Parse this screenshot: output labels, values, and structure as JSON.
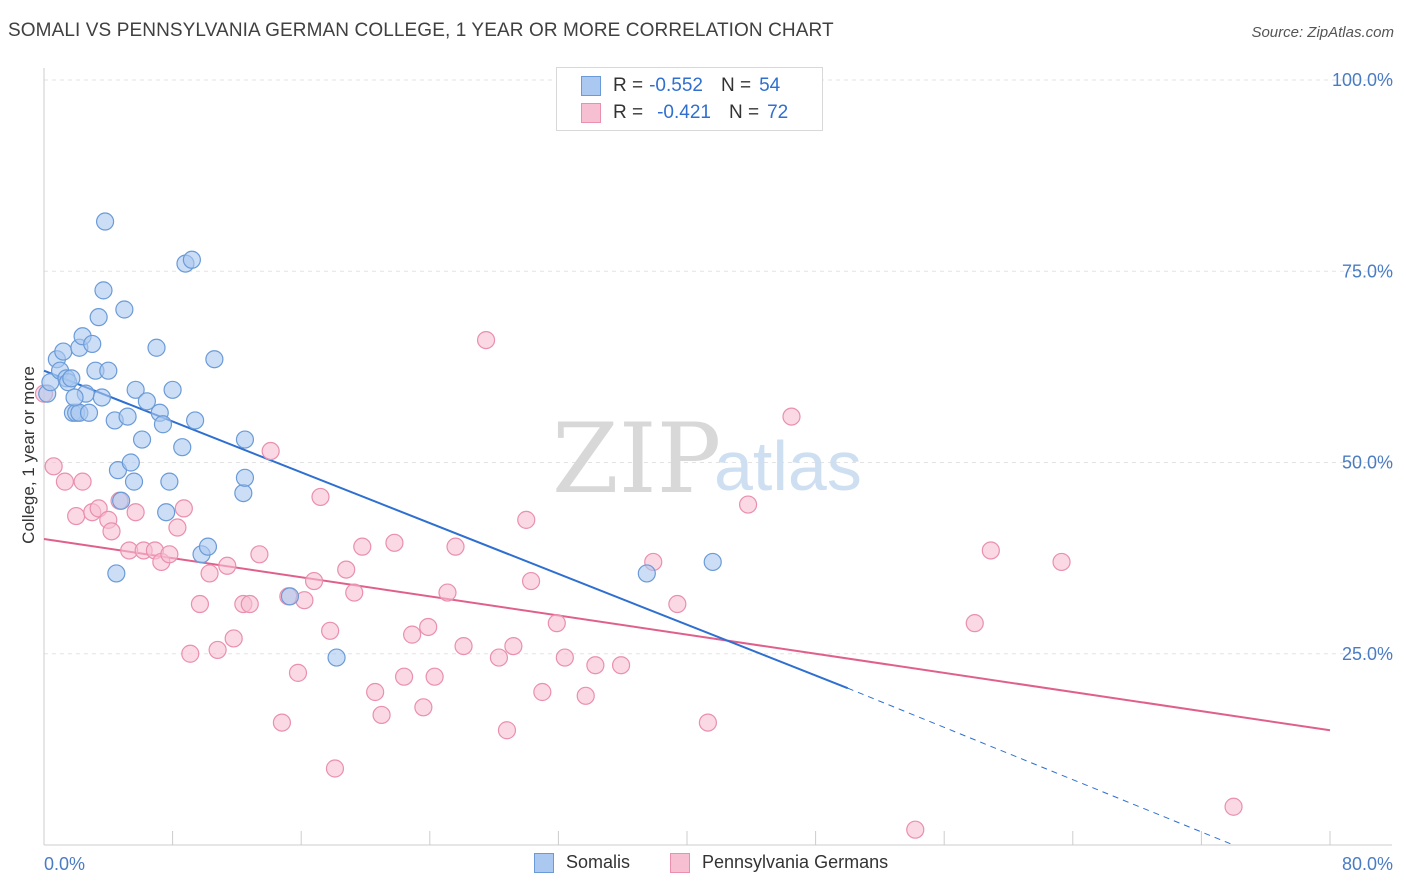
{
  "title": "SOMALI VS PENNSYLVANIA GERMAN COLLEGE, 1 YEAR OR MORE CORRELATION CHART",
  "source": "Source: ZipAtlas.com",
  "watermark": {
    "zip": "ZIP",
    "atlas": "atlas"
  },
  "legend": {
    "somali": {
      "r_label": "R =",
      "r_value": "-0.552",
      "n_label": "N =",
      "n_value": "54"
    },
    "pa": {
      "r_label": "R =",
      "r_value": "-0.421",
      "n_label": "N =",
      "n_value": "72"
    }
  },
  "bottom_legend": {
    "somali": "Somalis",
    "pa": "Pennsylvania Germans"
  },
  "colors": {
    "somali_fill": "#aac8f0",
    "somali_stroke": "#6a9bd8",
    "somali_line": "#2e6fd0",
    "pa_fill": "#f7bfd2",
    "pa_stroke": "#ea8fae",
    "pa_line": "#e0608c",
    "tick_text": "#4a7cc4",
    "grid": "#e3e3e3"
  },
  "chart_data": {
    "type": "scatter",
    "xlabel": "",
    "ylabel": "College, 1 year or more",
    "xlim": [
      0,
      80
    ],
    "ylim": [
      0,
      100
    ],
    "x_tick_labels": [
      "0.0%",
      "80.0%"
    ],
    "y_ticks": [
      25,
      50,
      75,
      100
    ],
    "y_tick_labels": [
      "25.0%",
      "50.0%",
      "75.0%",
      "100.0%"
    ],
    "grid": true,
    "series": [
      {
        "name": "Somalis",
        "points": [
          [
            0.2,
            59.0
          ],
          [
            0.4,
            60.5
          ],
          [
            0.8,
            63.5
          ],
          [
            1.0,
            62.0
          ],
          [
            1.2,
            64.5
          ],
          [
            1.4,
            61.0
          ],
          [
            1.5,
            60.5
          ],
          [
            1.7,
            61.0
          ],
          [
            1.8,
            56.5
          ],
          [
            2.0,
            56.5
          ],
          [
            2.2,
            56.5
          ],
          [
            2.2,
            65.0
          ],
          [
            2.4,
            66.5
          ],
          [
            2.6,
            59.0
          ],
          [
            2.8,
            56.5
          ],
          [
            3.0,
            65.5
          ],
          [
            3.2,
            62.0
          ],
          [
            3.4,
            69.0
          ],
          [
            3.6,
            58.5
          ],
          [
            3.7,
            72.5
          ],
          [
            3.8,
            81.5
          ],
          [
            4.0,
            62.0
          ],
          [
            4.4,
            55.5
          ],
          [
            4.6,
            49.0
          ],
          [
            4.8,
            45.0
          ],
          [
            5.0,
            70.0
          ],
          [
            5.2,
            56.0
          ],
          [
            5.4,
            50.0
          ],
          [
            5.6,
            47.5
          ],
          [
            5.7,
            59.5
          ],
          [
            6.1,
            53.0
          ],
          [
            6.4,
            58.0
          ],
          [
            7.0,
            65.0
          ],
          [
            7.2,
            56.5
          ],
          [
            7.4,
            55.0
          ],
          [
            7.6,
            43.5
          ],
          [
            7.8,
            47.5
          ],
          [
            8.0,
            59.5
          ],
          [
            8.6,
            52.0
          ],
          [
            8.8,
            76.0
          ],
          [
            9.2,
            76.5
          ],
          [
            9.4,
            55.5
          ],
          [
            9.8,
            38.0
          ],
          [
            10.2,
            39.0
          ],
          [
            10.6,
            63.5
          ],
          [
            12.4,
            46.0
          ],
          [
            12.5,
            48.0
          ],
          [
            12.5,
            53.0
          ],
          [
            15.3,
            32.5
          ],
          [
            18.2,
            24.5
          ],
          [
            37.5,
            35.5
          ],
          [
            41.6,
            37.0
          ],
          [
            4.5,
            35.5
          ],
          [
            1.9,
            58.5
          ]
        ]
      },
      {
        "name": "Pennsylvania Germans",
        "points": [
          [
            0.0,
            59.0
          ],
          [
            0.6,
            49.5
          ],
          [
            1.3,
            47.5
          ],
          [
            2.0,
            43.0
          ],
          [
            2.4,
            47.5
          ],
          [
            3.0,
            43.5
          ],
          [
            3.4,
            44.0
          ],
          [
            4.0,
            42.5
          ],
          [
            4.2,
            41.0
          ],
          [
            4.7,
            45.0
          ],
          [
            5.3,
            38.5
          ],
          [
            5.7,
            43.5
          ],
          [
            6.2,
            38.5
          ],
          [
            6.9,
            38.5
          ],
          [
            7.3,
            37.0
          ],
          [
            7.8,
            38.0
          ],
          [
            8.3,
            41.5
          ],
          [
            8.7,
            44.0
          ],
          [
            9.1,
            25.0
          ],
          [
            9.7,
            31.5
          ],
          [
            10.3,
            35.5
          ],
          [
            10.8,
            25.5
          ],
          [
            11.4,
            36.5
          ],
          [
            11.8,
            27.0
          ],
          [
            12.4,
            31.5
          ],
          [
            12.8,
            31.5
          ],
          [
            13.4,
            38.0
          ],
          [
            14.1,
            51.5
          ],
          [
            14.8,
            16.0
          ],
          [
            15.2,
            32.5
          ],
          [
            15.8,
            22.5
          ],
          [
            16.2,
            32.0
          ],
          [
            16.8,
            34.5
          ],
          [
            17.2,
            45.5
          ],
          [
            17.8,
            28.0
          ],
          [
            18.1,
            10.0
          ],
          [
            18.8,
            36.0
          ],
          [
            19.3,
            33.0
          ],
          [
            19.8,
            39.0
          ],
          [
            20.6,
            20.0
          ],
          [
            21.0,
            17.0
          ],
          [
            21.8,
            39.5
          ],
          [
            22.4,
            22.0
          ],
          [
            22.9,
            27.5
          ],
          [
            23.6,
            18.0
          ],
          [
            23.9,
            28.5
          ],
          [
            24.3,
            22.0
          ],
          [
            25.1,
            33.0
          ],
          [
            25.6,
            39.0
          ],
          [
            26.1,
            26.0
          ],
          [
            27.5,
            66.0
          ],
          [
            28.3,
            24.5
          ],
          [
            28.8,
            15.0
          ],
          [
            29.2,
            26.0
          ],
          [
            30.0,
            42.5
          ],
          [
            30.3,
            34.5
          ],
          [
            31.0,
            20.0
          ],
          [
            31.9,
            29.0
          ],
          [
            32.4,
            24.5
          ],
          [
            33.7,
            19.5
          ],
          [
            34.3,
            23.5
          ],
          [
            35.9,
            23.5
          ],
          [
            37.9,
            37.0
          ],
          [
            39.4,
            31.5
          ],
          [
            41.3,
            16.0
          ],
          [
            43.8,
            44.5
          ],
          [
            46.5,
            56.0
          ],
          [
            54.2,
            2.0
          ],
          [
            57.9,
            29.0
          ],
          [
            58.9,
            38.5
          ],
          [
            63.3,
            37.0
          ],
          [
            74.0,
            5.0
          ]
        ]
      }
    ],
    "trend_lines": [
      {
        "series": "Somalis",
        "x": [
          0,
          50
        ],
        "y": [
          62.0,
          20.5
        ],
        "dashed_extension_x": [
          50,
          74
        ],
        "dashed_extension_y": [
          20.5,
          0.0
        ]
      },
      {
        "series": "Pennsylvania Germans",
        "x": [
          0,
          80
        ],
        "y": [
          40.0,
          15.0
        ]
      }
    ]
  }
}
